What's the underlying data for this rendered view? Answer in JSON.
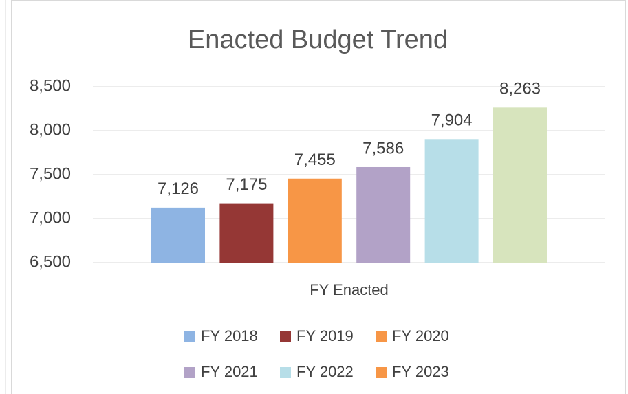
{
  "chart_data": {
    "type": "bar",
    "title": "Enacted Budget Trend",
    "categories": [
      "FY Enacted"
    ],
    "series": [
      {
        "name": "FY 2018",
        "color": "#8eb4e3",
        "values": [
          7126
        ],
        "value_labels": [
          "7,126"
        ]
      },
      {
        "name": "FY 2019",
        "color": "#953735",
        "values": [
          7175
        ],
        "value_labels": [
          "7,175"
        ]
      },
      {
        "name": "FY 2020",
        "color": "#f79646",
        "values": [
          7455
        ],
        "value_labels": [
          "7,455"
        ]
      },
      {
        "name": "FY 2021",
        "color": "#b2a2c7",
        "values": [
          7586
        ],
        "value_labels": [
          "7,586"
        ]
      },
      {
        "name": "FY 2022",
        "color": "#b7dee8",
        "values": [
          7904
        ],
        "value_labels": [
          "7,904"
        ]
      },
      {
        "name": "FY 2023",
        "color": "#d7e4bd",
        "legend_color": "#f79646",
        "values": [
          8263
        ],
        "value_labels": [
          "8,263"
        ]
      }
    ],
    "ylim": [
      6500,
      8500
    ],
    "yticks": [
      {
        "value": 6500,
        "label": "6,500"
      },
      {
        "value": 7000,
        "label": "7,000"
      },
      {
        "value": 7500,
        "label": "7,500"
      },
      {
        "value": 8000,
        "label": "8,000"
      },
      {
        "value": 8500,
        "label": "8,500"
      }
    ],
    "grid": true,
    "legend": "bottom"
  }
}
